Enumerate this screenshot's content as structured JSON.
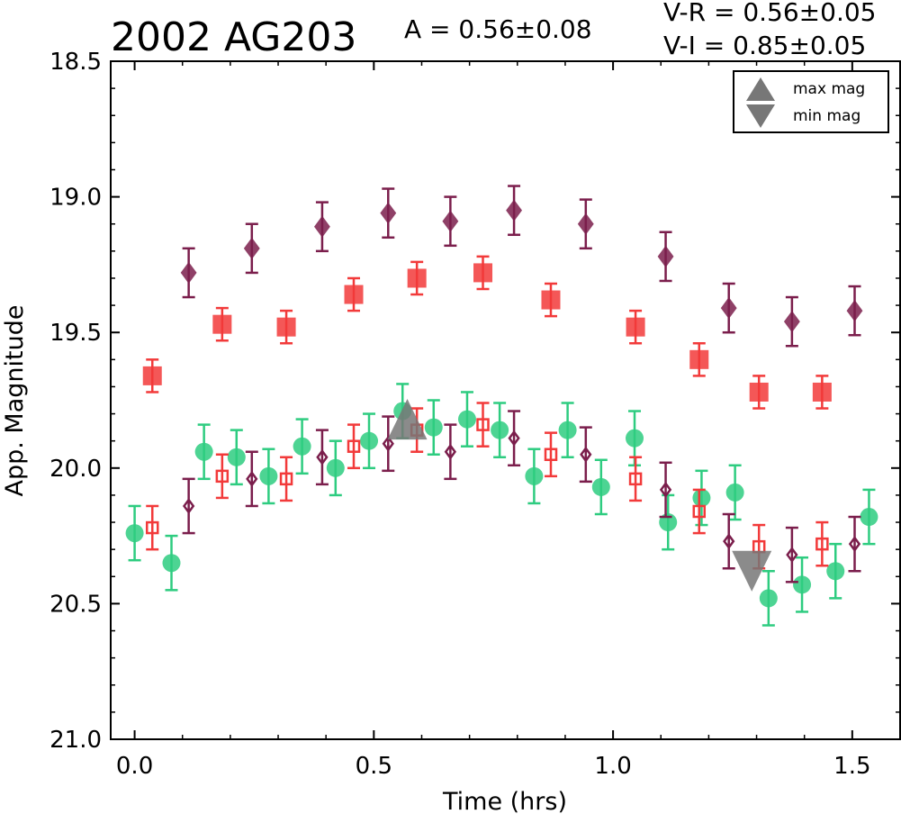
{
  "chart_data": {
    "type": "scatter",
    "title": "2002 AG203",
    "annotations": {
      "amplitude": "A  = 0.56±0.08",
      "vr": "V-R = 0.56±0.05",
      "vi": "V-I  = 0.85±0.05"
    },
    "xlabel": "Time (hrs)",
    "ylabel": "App. Magnitude",
    "xlim": [
      -0.05,
      1.6
    ],
    "ylim": [
      21.0,
      18.5
    ],
    "y_inverted": true,
    "xticks": [
      "0.0",
      "0.5",
      "1.0",
      "1.5"
    ],
    "xtick_values": [
      0.0,
      0.5,
      1.0,
      1.5
    ],
    "yticks": [
      "18.5",
      "19.0",
      "19.5",
      "20.0",
      "20.5",
      "21.0"
    ],
    "ytick_values": [
      18.5,
      19.0,
      19.5,
      20.0,
      20.5,
      21.0
    ],
    "grid": false,
    "legend_position": "top-right",
    "legend": [
      {
        "label": "max mag",
        "marker": "triangle-up",
        "color": "#777777"
      },
      {
        "label": "min mag",
        "marker": "triangle-down",
        "color": "#777777"
      }
    ],
    "series": [
      {
        "marker": "diamond",
        "filled": true,
        "color": "#7b1e4c",
        "x": [
          0.113,
          0.245,
          0.392,
          0.53,
          0.66,
          0.793,
          0.943,
          1.11,
          1.242,
          1.374,
          1.505
        ],
        "y": [
          19.28,
          19.19,
          19.11,
          19.06,
          19.09,
          19.05,
          19.1,
          19.22,
          19.41,
          19.46,
          19.42
        ],
        "yerr": 0.09
      },
      {
        "marker": "square",
        "filled": true,
        "color": "#f23a3a",
        "x": [
          0.037,
          0.183,
          0.317,
          0.458,
          0.59,
          0.728,
          0.87,
          1.047,
          1.18,
          1.305,
          1.437
        ],
        "y": [
          19.66,
          19.47,
          19.48,
          19.36,
          19.3,
          19.28,
          19.38,
          19.48,
          19.6,
          19.72,
          19.72
        ],
        "yerr": 0.06
      },
      {
        "marker": "circle",
        "filled": true,
        "color": "#2ecc80",
        "x": [
          0.0,
          0.077,
          0.145,
          0.213,
          0.28,
          0.35,
          0.42,
          0.49,
          0.56,
          0.625,
          0.695,
          0.763,
          0.835,
          0.905,
          0.975,
          1.045,
          1.115,
          1.185,
          1.255,
          1.325,
          1.395,
          1.465,
          1.535
        ],
        "y": [
          20.24,
          20.35,
          19.94,
          19.96,
          20.03,
          19.92,
          20.0,
          19.9,
          19.79,
          19.85,
          19.82,
          19.86,
          20.03,
          19.86,
          20.07,
          19.89,
          20.2,
          20.11,
          20.09,
          20.48,
          20.43,
          20.38,
          20.18
        ],
        "yerr": 0.1
      },
      {
        "marker": "square",
        "filled": false,
        "color": "#f23a3a",
        "x": [
          0.037,
          0.183,
          0.317,
          0.458,
          0.59,
          0.728,
          0.87,
          1.047,
          1.18,
          1.305,
          1.437
        ],
        "y": [
          20.22,
          20.03,
          20.04,
          19.92,
          19.86,
          19.84,
          19.95,
          20.04,
          20.16,
          20.29,
          20.28
        ],
        "yerr": 0.08
      },
      {
        "marker": "diamond",
        "filled": false,
        "color": "#7b1e4c",
        "x": [
          0.113,
          0.245,
          0.392,
          0.53,
          0.66,
          0.793,
          0.943,
          1.11,
          1.242,
          1.374,
          1.505
        ],
        "y": [
          20.14,
          20.04,
          19.96,
          19.91,
          19.94,
          19.89,
          19.95,
          20.08,
          20.27,
          20.32,
          20.28
        ],
        "yerr": 0.1
      }
    ],
    "extrema_markers": [
      {
        "kind": "max mag",
        "marker": "triangle-up",
        "color": "#777777",
        "x": 0.57,
        "y": 19.84
      },
      {
        "kind": "min mag",
        "marker": "triangle-down",
        "color": "#777777",
        "x": 1.29,
        "y": 20.36
      }
    ]
  }
}
